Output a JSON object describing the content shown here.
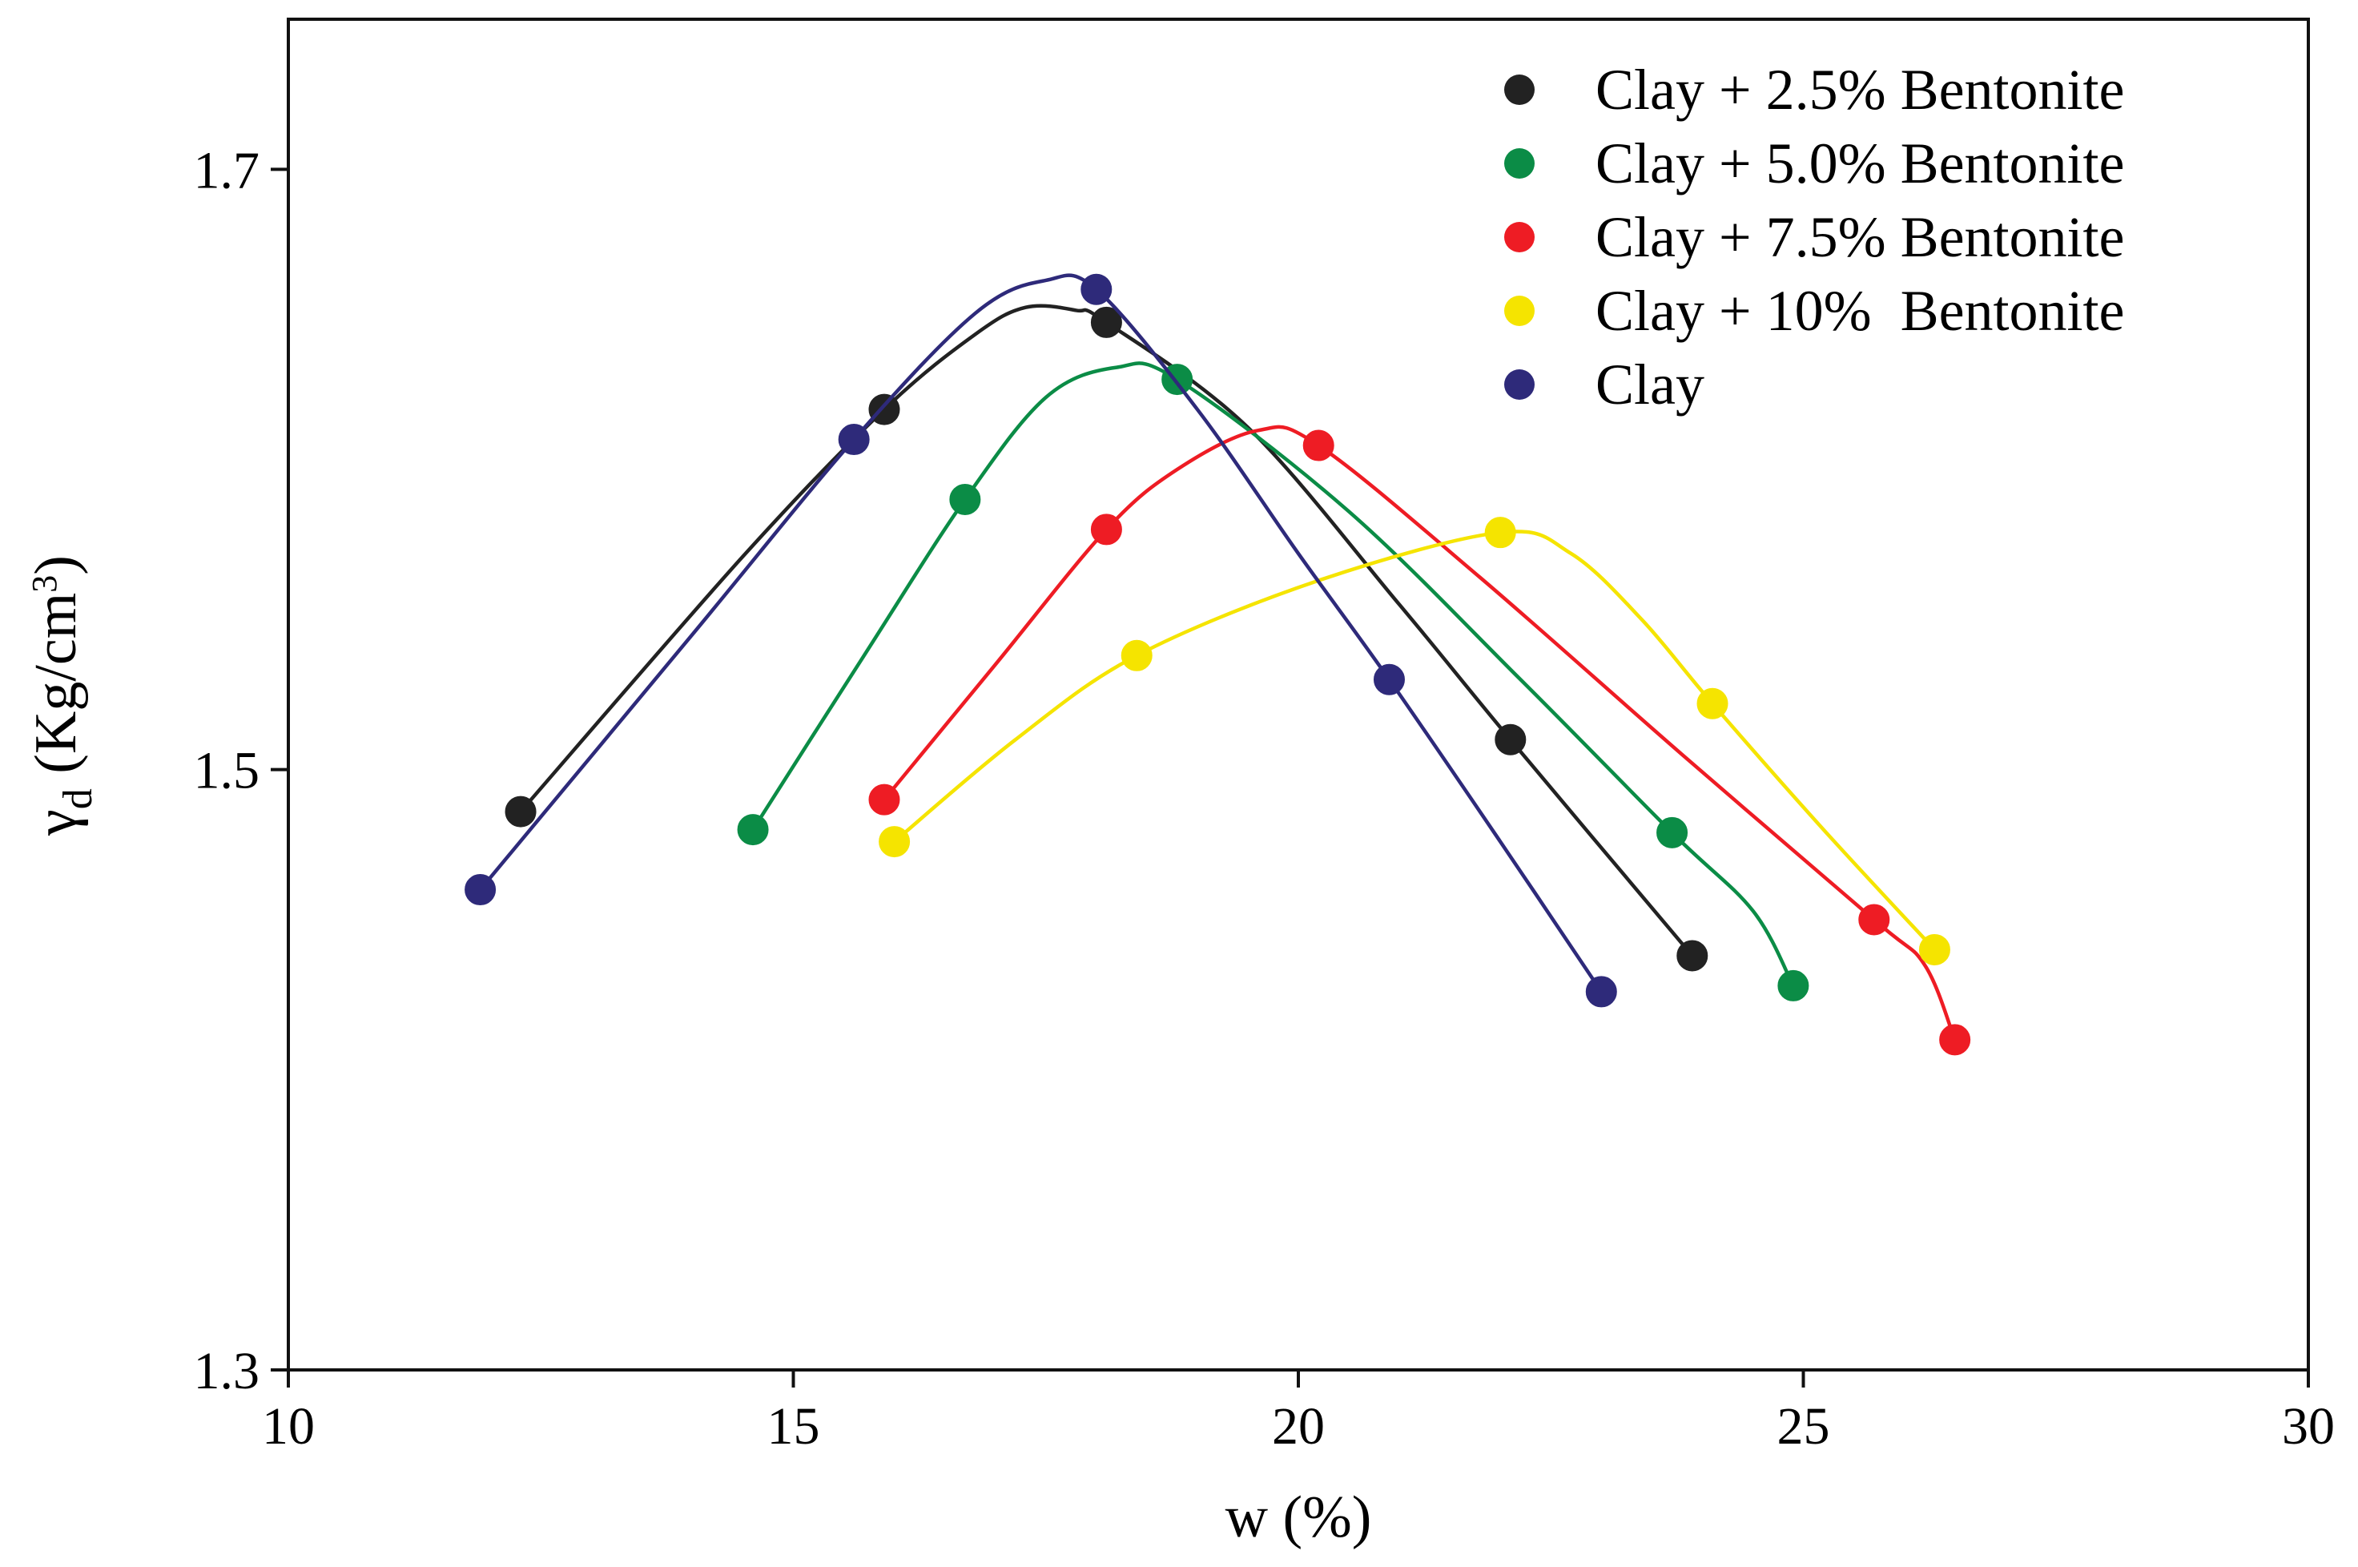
{
  "chart_data": {
    "type": "line",
    "title": "",
    "xlabel": "w (%)",
    "ylabel": {
      "main": "γ",
      "subscript": "d",
      "unit_prefix": " (Kg/cm",
      "unit_power": "3",
      "unit_suffix": ")"
    },
    "xlim": [
      10,
      30
    ],
    "ylim": [
      1.3,
      1.75
    ],
    "x_ticks": [
      10,
      15,
      20,
      25,
      30
    ],
    "x_tick_labels": [
      "10",
      "15",
      "20",
      "25",
      "30"
    ],
    "y_ticks": [
      1.3,
      1.5,
      1.7
    ],
    "y_tick_labels": [
      "1.3",
      "1.5",
      "1.7"
    ],
    "grid": false,
    "legend_position": "top-right",
    "series": [
      {
        "name": "Clay + 2.5% Bentonite",
        "color": "#222222",
        "points": [
          [
            12.3,
            1.486
          ],
          [
            15.9,
            1.62
          ],
          [
            18.1,
            1.649
          ],
          [
            22.1,
            1.51
          ],
          [
            23.9,
            1.438
          ]
        ],
        "curve": [
          [
            12.3,
            1.486
          ],
          [
            14.5,
            1.571
          ],
          [
            15.9,
            1.62
          ],
          [
            16.8,
            1.645
          ],
          [
            17.3,
            1.654
          ],
          [
            17.8,
            1.653
          ],
          [
            18.1,
            1.649
          ],
          [
            19.5,
            1.614
          ],
          [
            21.0,
            1.555
          ],
          [
            22.1,
            1.51
          ],
          [
            23.9,
            1.438
          ]
        ]
      },
      {
        "name": "Clay + 5.0% Bentonite",
        "color": "#0b8c46",
        "points": [
          [
            14.6,
            1.48
          ],
          [
            16.7,
            1.59
          ],
          [
            18.8,
            1.63
          ],
          [
            23.7,
            1.479
          ],
          [
            24.9,
            1.428
          ]
        ],
        "curve": [
          [
            14.6,
            1.48
          ],
          [
            15.7,
            1.538
          ],
          [
            16.7,
            1.59
          ],
          [
            17.5,
            1.624
          ],
          [
            18.2,
            1.634
          ],
          [
            18.8,
            1.63
          ],
          [
            20.5,
            1.586
          ],
          [
            22.2,
            1.53
          ],
          [
            23.7,
            1.479
          ],
          [
            24.5,
            1.453
          ],
          [
            24.9,
            1.428
          ]
        ]
      },
      {
        "name": "Clay + 7.5% Bentonite",
        "color": "#ee1c24",
        "points": [
          [
            15.9,
            1.49
          ],
          [
            18.1,
            1.58
          ],
          [
            20.2,
            1.608
          ],
          [
            25.7,
            1.45
          ],
          [
            26.5,
            1.41
          ]
        ],
        "curve": [
          [
            15.9,
            1.49
          ],
          [
            17.0,
            1.535
          ],
          [
            18.1,
            1.58
          ],
          [
            18.8,
            1.6
          ],
          [
            19.6,
            1.613
          ],
          [
            20.2,
            1.608
          ],
          [
            21.8,
            1.564
          ],
          [
            23.8,
            1.505
          ],
          [
            25.7,
            1.45
          ],
          [
            26.2,
            1.435
          ],
          [
            26.5,
            1.41
          ]
        ]
      },
      {
        "name": "Clay + 10%  Bentonite",
        "color": "#f5e400",
        "points": [
          [
            16.0,
            1.476
          ],
          [
            18.4,
            1.538
          ],
          [
            22.0,
            1.579
          ],
          [
            24.1,
            1.522
          ],
          [
            26.3,
            1.44
          ]
        ],
        "curve": [
          [
            16.0,
            1.476
          ],
          [
            17.2,
            1.51
          ],
          [
            18.4,
            1.538
          ],
          [
            20.2,
            1.563
          ],
          [
            22.0,
            1.579
          ],
          [
            22.7,
            1.572
          ],
          [
            23.4,
            1.55
          ],
          [
            24.1,
            1.522
          ],
          [
            25.2,
            1.48
          ],
          [
            26.3,
            1.44
          ]
        ]
      },
      {
        "name": "Clay",
        "color": "#2e2a7a",
        "points": [
          [
            11.9,
            1.46
          ],
          [
            15.6,
            1.61
          ],
          [
            18.0,
            1.66
          ],
          [
            20.9,
            1.53
          ],
          [
            23.0,
            1.426
          ]
        ],
        "curve": [
          [
            11.9,
            1.46
          ],
          [
            14.0,
            1.545
          ],
          [
            15.6,
            1.61
          ],
          [
            16.8,
            1.652
          ],
          [
            17.5,
            1.663
          ],
          [
            18.0,
            1.66
          ],
          [
            19.0,
            1.62
          ],
          [
            20.0,
            1.572
          ],
          [
            20.9,
            1.53
          ],
          [
            22.0,
            1.476
          ],
          [
            23.0,
            1.426
          ]
        ]
      }
    ]
  }
}
